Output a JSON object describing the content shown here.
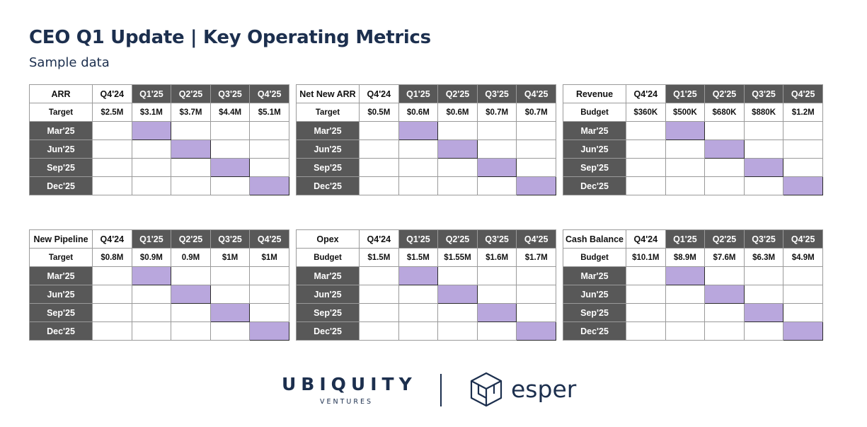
{
  "header": {
    "title": "CEO Q1 Update | Key Operating Metrics",
    "subtitle": "Sample data"
  },
  "colors": {
    "title": "#1c2f4e",
    "dark_header": "#585858",
    "highlight": "#b9a7dd"
  },
  "panels": [
    {
      "metric": "ARR",
      "quarters": [
        "Q4'24",
        "Q1'25",
        "Q2'25",
        "Q3'25",
        "Q4'25"
      ],
      "target_label": "Target",
      "targets": [
        "$2.5M",
        "$3.1M",
        "$3.7M",
        "$4.4M",
        "$5.1M"
      ],
      "rows": [
        "Mar'25",
        "Jun'25",
        "Sep'25",
        "Dec'25"
      ]
    },
    {
      "metric": "Net New ARR",
      "quarters": [
        "Q4'24",
        "Q1'25",
        "Q2'25",
        "Q3'25",
        "Q4'25"
      ],
      "target_label": "Target",
      "targets": [
        "$0.5M",
        "$0.6M",
        "$0.6M",
        "$0.7M",
        "$0.7M"
      ],
      "rows": [
        "Mar'25",
        "Jun'25",
        "Sep'25",
        "Dec'25"
      ]
    },
    {
      "metric": "Revenue",
      "quarters": [
        "Q4'24",
        "Q1'25",
        "Q2'25",
        "Q3'25",
        "Q4'25"
      ],
      "target_label": "Budget",
      "targets": [
        "$360K",
        "$500K",
        "$680K",
        "$880K",
        "$1.2M"
      ],
      "rows": [
        "Mar'25",
        "Jun'25",
        "Sep'25",
        "Dec'25"
      ]
    },
    {
      "metric": "New Pipeline",
      "quarters": [
        "Q4'24",
        "Q1'25",
        "Q2'25",
        "Q3'25",
        "Q4'25"
      ],
      "target_label": "Target",
      "targets": [
        "$0.8M",
        "$0.9M",
        "0.9M",
        "$1M",
        "$1M"
      ],
      "rows": [
        "Mar'25",
        "Jun'25",
        "Sep'25",
        "Dec'25"
      ]
    },
    {
      "metric": "Opex",
      "quarters": [
        "Q4'24",
        "Q1'25",
        "Q2'25",
        "Q3'25",
        "Q4'25"
      ],
      "target_label": "Budget",
      "targets": [
        "$1.5M",
        "$1.5M",
        "$1.55M",
        "$1.6M",
        "$1.7M"
      ],
      "rows": [
        "Mar'25",
        "Jun'25",
        "Sep'25",
        "Dec'25"
      ]
    },
    {
      "metric": "Cash Balance",
      "quarters": [
        "Q4'24",
        "Q1'25",
        "Q2'25",
        "Q3'25",
        "Q4'25"
      ],
      "target_label": "Budget",
      "targets": [
        "$10.1M",
        "$8.9M",
        "$7.6M",
        "$6.3M",
        "$4.9M"
      ],
      "rows": [
        "Mar'25",
        "Jun'25",
        "Sep'25",
        "Dec'25"
      ]
    }
  ],
  "highlighted_cells": [
    {
      "row": "Mar'25",
      "quarter": "Q1'25"
    },
    {
      "row": "Jun'25",
      "quarter": "Q2'25"
    },
    {
      "row": "Sep'25",
      "quarter": "Q3'25"
    },
    {
      "row": "Dec'25",
      "quarter": "Q4'25"
    }
  ],
  "footer": {
    "ubiquity_word": "UBIQUITY",
    "ubiquity_sub": "VENTURES",
    "esper_word": "esper"
  }
}
